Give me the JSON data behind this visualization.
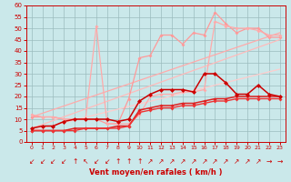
{
  "bg_color": "#cae8ea",
  "grid_color": "#9bbcbe",
  "xlabel": "Vent moyen/en rafales ( km/h )",
  "xlabel_color": "#cc0000",
  "tick_color": "#cc0000",
  "ylim": [
    0,
    60
  ],
  "yticks": [
    0,
    5,
    10,
    15,
    20,
    25,
    30,
    35,
    40,
    45,
    50,
    55,
    60
  ],
  "xlim": [
    -0.5,
    23.5
  ],
  "xticks": [
    0,
    1,
    2,
    3,
    4,
    5,
    6,
    7,
    8,
    9,
    10,
    11,
    12,
    13,
    14,
    15,
    16,
    17,
    18,
    19,
    20,
    21,
    22,
    23
  ],
  "series": [
    {
      "name": "trend_upper",
      "x": [
        0,
        23
      ],
      "y": [
        11,
        48
      ],
      "color": "#ffaaaa",
      "linewidth": 0.9,
      "marker": null,
      "zorder": 2
    },
    {
      "name": "trend_mid",
      "x": [
        0,
        23
      ],
      "y": [
        6,
        45
      ],
      "color": "#ffbbbb",
      "linewidth": 0.9,
      "marker": null,
      "zorder": 2
    },
    {
      "name": "trend_lower",
      "x": [
        0,
        23
      ],
      "y": [
        5,
        32
      ],
      "color": "#ffcccc",
      "linewidth": 0.9,
      "marker": null,
      "zorder": 2
    },
    {
      "name": "light_pink_upper",
      "x": [
        0,
        1,
        2,
        3,
        4,
        5,
        6,
        7,
        8,
        9,
        10,
        11,
        12,
        13,
        14,
        15,
        16,
        17,
        18,
        19,
        20,
        21,
        22,
        23
      ],
      "y": [
        11,
        11,
        11,
        10,
        10,
        10,
        10,
        8,
        8,
        19,
        37,
        38,
        47,
        47,
        43,
        48,
        47,
        57,
        52,
        48,
        50,
        50,
        46,
        46
      ],
      "color": "#ff9999",
      "linewidth": 0.9,
      "marker": "D",
      "markersize": 2.0,
      "zorder": 3
    },
    {
      "name": "light_pink_lower",
      "x": [
        0,
        1,
        2,
        3,
        4,
        5,
        6,
        7,
        8,
        9,
        10,
        11,
        12,
        13,
        14,
        15,
        16,
        17,
        18,
        19,
        20,
        21,
        22,
        23
      ],
      "y": [
        12,
        11,
        11,
        10,
        10,
        10,
        51,
        8,
        8,
        8,
        12,
        20,
        21,
        21,
        22,
        22,
        23,
        53,
        51,
        50,
        50,
        49,
        47,
        47
      ],
      "color": "#ffaaaa",
      "linewidth": 0.9,
      "marker": "D",
      "markersize": 2.0,
      "zorder": 3
    },
    {
      "name": "dark_red_main",
      "x": [
        0,
        1,
        2,
        3,
        4,
        5,
        6,
        7,
        8,
        9,
        10,
        11,
        12,
        13,
        14,
        15,
        16,
        17,
        18,
        19,
        20,
        21,
        22,
        23
      ],
      "y": [
        6,
        7,
        7,
        9,
        10,
        10,
        10,
        10,
        9,
        10,
        18,
        21,
        23,
        23,
        23,
        22,
        30,
        30,
        26,
        21,
        21,
        25,
        21,
        20
      ],
      "color": "#cc0000",
      "linewidth": 1.1,
      "marker": "D",
      "markersize": 2.5,
      "zorder": 5
    },
    {
      "name": "dark_red_lower1",
      "x": [
        0,
        1,
        2,
        3,
        4,
        5,
        6,
        7,
        8,
        9,
        10,
        11,
        12,
        13,
        14,
        15,
        16,
        17,
        18,
        19,
        20,
        21,
        22,
        23
      ],
      "y": [
        5,
        5,
        5,
        5,
        6,
        6,
        6,
        6,
        7,
        7,
        14,
        15,
        16,
        16,
        17,
        17,
        18,
        19,
        19,
        20,
        20,
        20,
        20,
        20
      ],
      "color": "#dd2222",
      "linewidth": 1.1,
      "marker": "D",
      "markersize": 2.0,
      "zorder": 4
    },
    {
      "name": "dark_red_lower2",
      "x": [
        0,
        1,
        2,
        3,
        4,
        5,
        6,
        7,
        8,
        9,
        10,
        11,
        12,
        13,
        14,
        15,
        16,
        17,
        18,
        19,
        20,
        21,
        22,
        23
      ],
      "y": [
        5,
        5,
        5,
        5,
        5,
        6,
        6,
        6,
        6,
        7,
        13,
        14,
        15,
        15,
        16,
        16,
        17,
        18,
        18,
        19,
        19,
        19,
        19,
        19
      ],
      "color": "#ee3333",
      "linewidth": 1.0,
      "marker": "D",
      "markersize": 2.0,
      "zorder": 4
    }
  ],
  "wind_arrows": [
    {
      "x": 0,
      "char": "↙"
    },
    {
      "x": 1,
      "char": "↙"
    },
    {
      "x": 2,
      "char": "↙"
    },
    {
      "x": 3,
      "char": "↙"
    },
    {
      "x": 4,
      "char": "↑"
    },
    {
      "x": 5,
      "char": "↖"
    },
    {
      "x": 6,
      "char": "↙"
    },
    {
      "x": 7,
      "char": "↙"
    },
    {
      "x": 8,
      "char": "↑"
    },
    {
      "x": 9,
      "char": "↑"
    },
    {
      "x": 10,
      "char": "↑"
    },
    {
      "x": 11,
      "char": "↗"
    },
    {
      "x": 12,
      "char": "↗"
    },
    {
      "x": 13,
      "char": "↗"
    },
    {
      "x": 14,
      "char": "↗"
    },
    {
      "x": 15,
      "char": "↗"
    },
    {
      "x": 16,
      "char": "↗"
    },
    {
      "x": 17,
      "char": "↗"
    },
    {
      "x": 18,
      "char": "↗"
    },
    {
      "x": 19,
      "char": "↗"
    },
    {
      "x": 20,
      "char": "↗"
    },
    {
      "x": 21,
      "char": "↗"
    },
    {
      "x": 22,
      "char": "→"
    },
    {
      "x": 23,
      "char": "→"
    }
  ]
}
